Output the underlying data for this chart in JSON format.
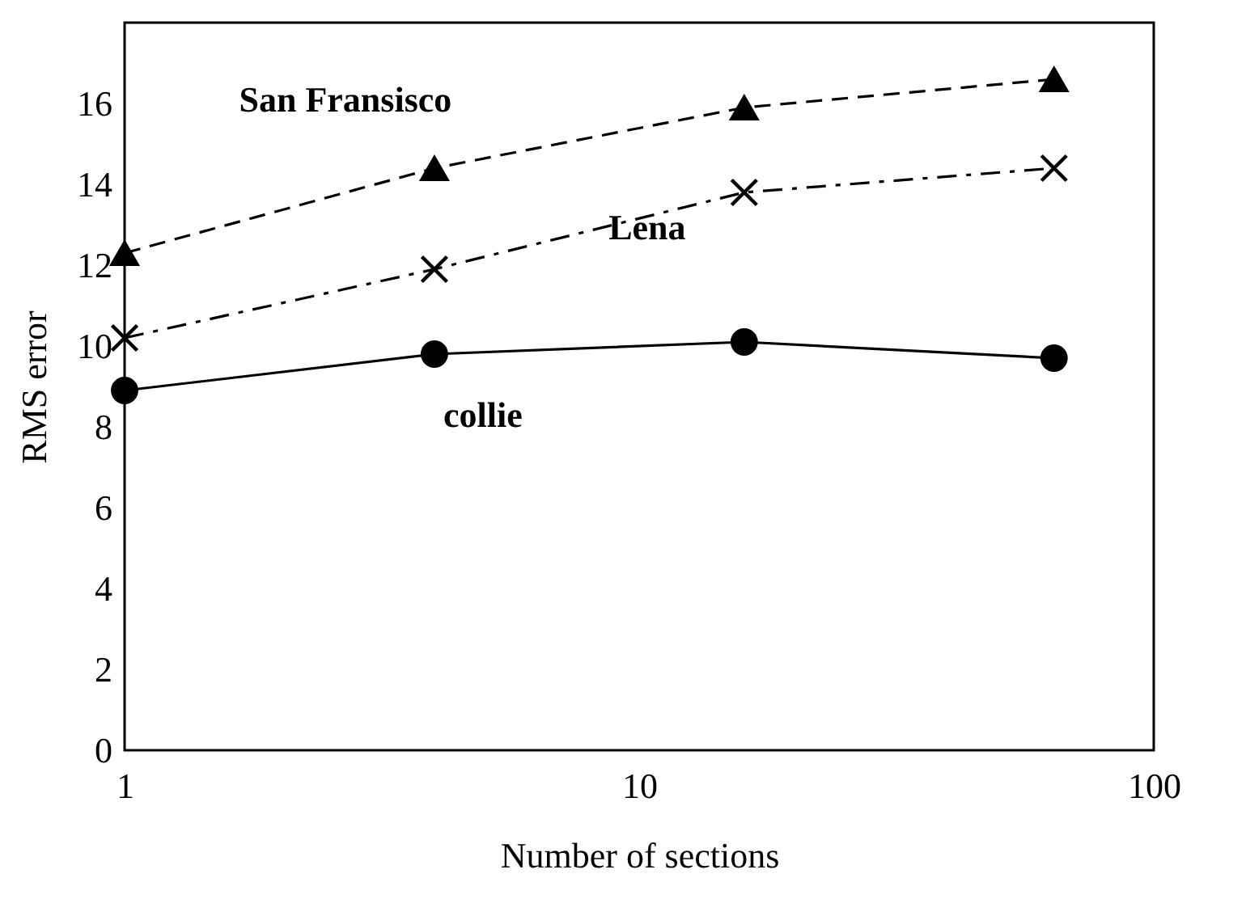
{
  "chart_data": {
    "type": "line",
    "xlabel": "Number of sections",
    "ylabel": "RMS error",
    "x": [
      1,
      4,
      16,
      64
    ],
    "xlim": [
      1,
      100
    ],
    "xticks": [
      1,
      10,
      100
    ],
    "ylim": [
      0,
      18
    ],
    "yticks": [
      0,
      2,
      4,
      6,
      8,
      10,
      12,
      14,
      16
    ],
    "log": "x",
    "grid": false,
    "legend": false,
    "series": [
      {
        "name": "San Fransisco",
        "color": "#000000",
        "values": [
          12.3,
          14.4,
          15.9,
          16.6
        ],
        "marker": "triangle",
        "line_style": "dashed"
      },
      {
        "name": "Lena",
        "color": "#000000",
        "values": [
          10.2,
          11.9,
          13.8,
          14.4
        ],
        "marker": "cross",
        "line_style": "dashdot"
      },
      {
        "name": "collie",
        "color": "#000000",
        "values": [
          8.9,
          9.8,
          10.1,
          9.7
        ],
        "marker": "circle",
        "line_style": "solid"
      }
    ]
  }
}
